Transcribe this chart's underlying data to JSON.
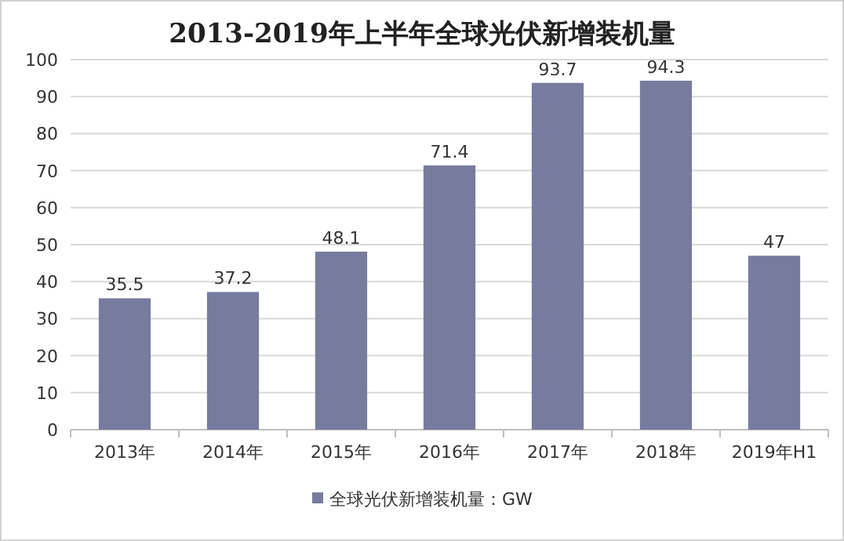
{
  "chart_data": {
    "type": "bar",
    "title": "2013-2019年上半年全球光伏新增装机量",
    "categories": [
      "2013年",
      "2014年",
      "2015年",
      "2016年",
      "2017年",
      "2018年",
      "2019年H1"
    ],
    "series": [
      {
        "name": "全球光伏新增装机量：GW",
        "color": "#777b9d",
        "values": [
          35.5,
          37.2,
          48.1,
          71.4,
          93.7,
          94.3,
          47
        ]
      }
    ],
    "ylim": [
      0,
      100
    ],
    "yticks": [
      0,
      10,
      20,
      30,
      40,
      50,
      60,
      70,
      80,
      90,
      100
    ],
    "grid": "y",
    "legend": "bottom",
    "data_labels": true
  }
}
